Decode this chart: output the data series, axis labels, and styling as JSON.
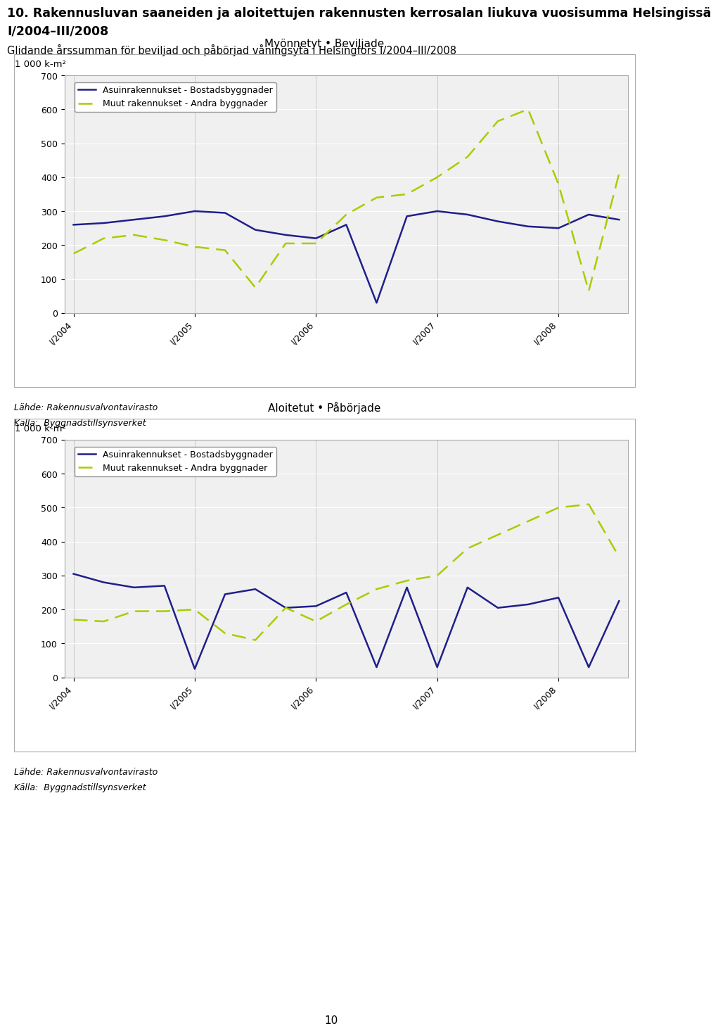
{
  "title_main_line1": "10. Rakennusluvan saaneiden ja aloitettujen rakennusten kerrosalan liukuva vuosisumma Helsingissä",
  "title_main_line2": "I/2004–III/2008",
  "title_sub": "Glidande årssumman för beviljad och påbörjad våningsyta i Helsingfors I/2004–III/2008",
  "chart1_title": "Myönnetyt • Beviljade",
  "chart2_title": "Aloitetut • Påbörjade",
  "ylabel": "1 000 k-m²",
  "legend_line1": "Asuinrakennukset - Bostadsbyggnader",
  "legend_line2": "Muut rakennukset - Andra byggnader",
  "source_line1": "Lähde: Rakennusvalvontavirasto",
  "source_line2": "Källa:  Byggnadstillsynsverket",
  "x_tick_positions": [
    0,
    4,
    8,
    12,
    16
  ],
  "x_tick_labels": [
    "I/2004",
    "I/2005",
    "I/2006",
    "I/2007",
    "I/2008"
  ],
  "chart1_blue": [
    260,
    265,
    275,
    285,
    300,
    295,
    245,
    230,
    220,
    260,
    30,
    285,
    300,
    290,
    270,
    255,
    250,
    290,
    275
  ],
  "chart1_green": [
    175,
    220,
    230,
    215,
    195,
    185,
    75,
    205,
    205,
    290,
    340,
    350,
    400,
    460,
    565,
    600,
    380,
    65,
    410
  ],
  "chart2_blue": [
    305,
    280,
    265,
    270,
    25,
    245,
    260,
    205,
    210,
    250,
    30,
    265,
    30,
    265,
    205,
    215,
    235,
    30,
    225
  ],
  "chart2_green": [
    170,
    165,
    195,
    195,
    200,
    130,
    110,
    205,
    165,
    215,
    260,
    285,
    300,
    380,
    420,
    460,
    500,
    510,
    355
  ],
  "ylim": [
    0,
    700
  ],
  "yticks": [
    0,
    100,
    200,
    300,
    400,
    500,
    600,
    700
  ],
  "blue_color": "#1F1F8B",
  "green_color": "#AACC00",
  "plot_bg": "#F0F0F0",
  "box_bg": "#FFFFFF",
  "grid_color": "#CCCCCC",
  "page_number": "10"
}
